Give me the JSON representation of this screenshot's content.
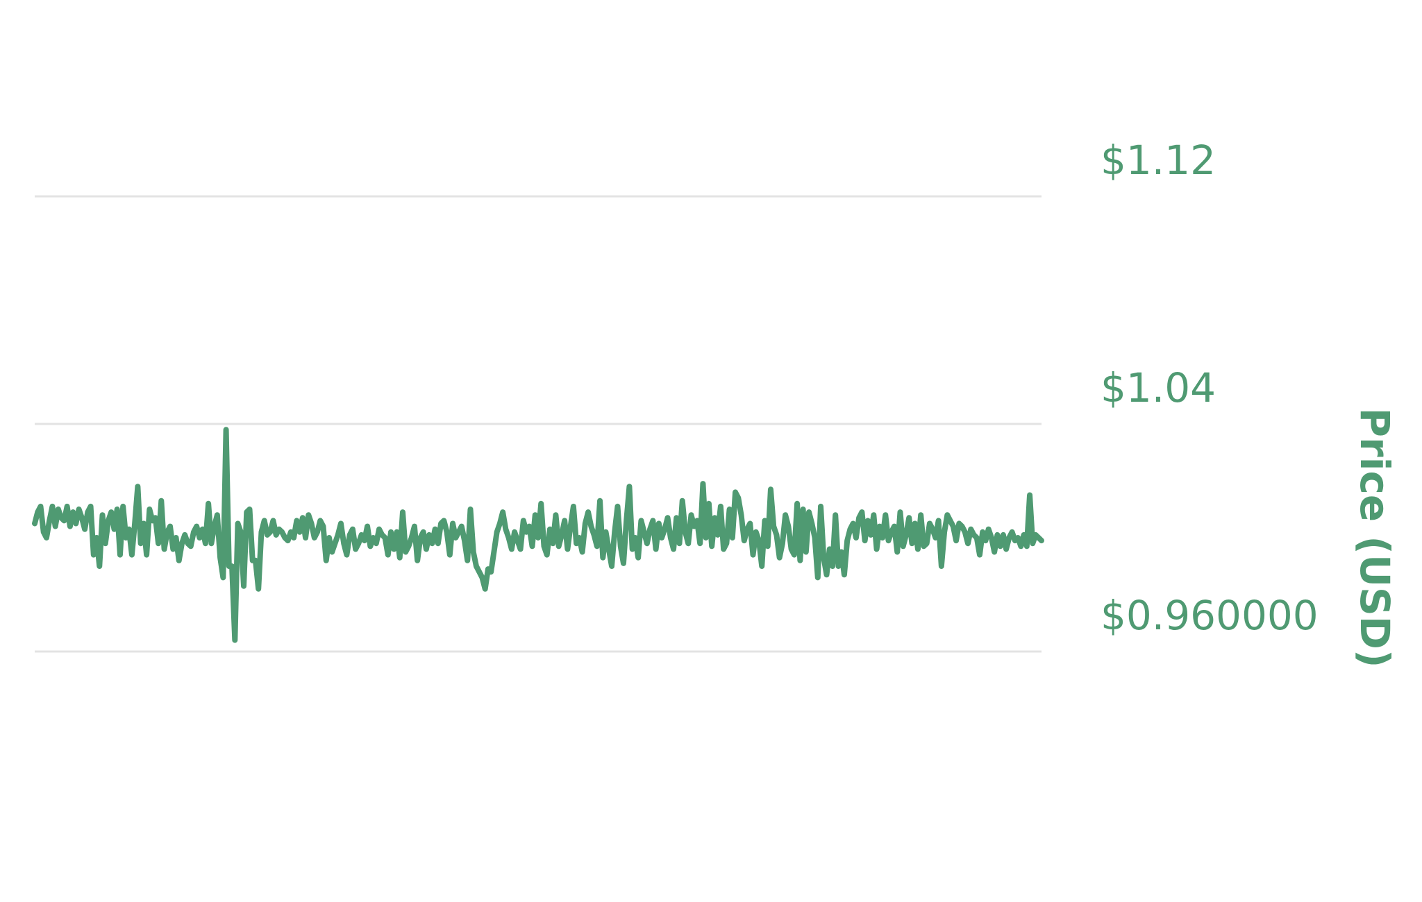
{
  "colors": {
    "line": "#4f9a72",
    "grid": "#e3e3e3",
    "text": "#4f9a72"
  },
  "chart_data": {
    "type": "line",
    "title": "",
    "xlabel": "",
    "ylabel": "Price (USD)",
    "ylim": [
      0.96,
      1.12
    ],
    "y_axis_side": "right",
    "grid": "horizontal",
    "legend": "none",
    "y_ticks": [
      {
        "value": 1.12,
        "label": "$1.12"
      },
      {
        "value": 1.04,
        "label": "$1.04"
      },
      {
        "value": 0.96,
        "label": "$0.960000"
      }
    ],
    "series": [
      {
        "values": [
          1.005,
          1.009,
          1.011,
          1.002,
          1.0,
          1.006,
          1.011,
          1.004,
          1.01,
          1.007,
          1.006,
          1.011,
          1.004,
          1.009,
          1.005,
          1.01,
          1.007,
          1.003,
          1.009,
          1.011,
          0.994,
          1.0,
          0.99,
          1.008,
          0.998,
          1.006,
          1.009,
          1.003,
          1.01,
          0.994,
          1.011,
          1.0,
          1.003,
          0.994,
          1.005,
          1.018,
          0.998,
          1.005,
          0.994,
          1.01,
          1.006,
          1.007,
          0.998,
          1.013,
          0.996,
          1.002,
          1.004,
          0.996,
          1.0,
          0.992,
          0.998,
          1.001,
          0.998,
          0.997,
          1.002,
          1.004,
          1.0,
          1.003,
          0.998,
          1.012,
          0.998,
          1.004,
          1.008,
          0.993,
          0.986,
          1.038,
          0.99,
          0.99,
          0.964,
          1.005,
          1.002,
          0.983,
          1.009,
          1.01,
          0.992,
          0.992,
          0.982,
          1.002,
          1.006,
          1.001,
          1.002,
          1.006,
          1.001,
          1.003,
          1.002,
          1.0,
          0.999,
          1.002,
          1.0,
          1.006,
          1.002,
          1.007,
          1.0,
          1.008,
          1.005,
          1.0,
          1.002,
          1.006,
          1.004,
          0.992,
          1.0,
          0.995,
          0.998,
          1.001,
          1.005,
          0.998,
          0.994,
          1.001,
          1.003,
          0.996,
          0.998,
          1.001,
          0.999,
          1.004,
          0.997,
          1.0,
          0.998,
          1.003,
          1.001,
          1.0,
          0.994,
          1.002,
          0.996,
          1.002,
          0.993,
          1.009,
          0.995,
          0.997,
          1.0,
          1.004,
          0.992,
          1.0,
          1.002,
          0.996,
          1.001,
          0.998,
          1.003,
          0.998,
          1.005,
          1.006,
          1.002,
          0.994,
          1.005,
          1.0,
          1.002,
          1.004,
          0.999,
          0.992,
          1.01,
          0.995,
          0.99,
          0.988,
          0.986,
          0.982,
          0.989,
          0.988,
          0.995,
          1.002,
          1.005,
          1.009,
          1.003,
          1.0,
          0.996,
          1.002,
          0.999,
          0.996,
          1.006,
          1.002,
          1.004,
          0.997,
          1.008,
          1.0,
          1.012,
          0.997,
          0.994,
          1.003,
          0.998,
          1.008,
          0.997,
          1.001,
          1.006,
          0.996,
          1.004,
          1.011,
          0.998,
          1.0,
          0.995,
          1.005,
          1.009,
          1.004,
          1.001,
          0.997,
          1.013,
          0.993,
          1.002,
          0.996,
          0.99,
          1.002,
          1.011,
          0.997,
          0.991,
          1.006,
          1.018,
          0.996,
          1.0,
          0.993,
          1.006,
          1.002,
          0.998,
          1.003,
          1.006,
          0.996,
          1.005,
          1.0,
          1.003,
          1.007,
          1.0,
          0.996,
          1.007,
          0.998,
          1.013,
          1.002,
          0.998,
          1.008,
          1.004,
          1.006,
          0.998,
          1.019,
          1.0,
          1.012,
          0.997,
          1.007,
          1.001,
          1.011,
          0.996,
          0.998,
          1.01,
          1.0,
          1.016,
          1.014,
          1.008,
          0.999,
          1.003,
          1.005,
          0.994,
          1.002,
          0.999,
          0.99,
          1.006,
          0.997,
          1.017,
          1.004,
          1.001,
          0.993,
          0.998,
          1.008,
          1.004,
          0.996,
          0.994,
          1.012,
          0.992,
          1.01,
          0.995,
          1.009,
          1.005,
          1.0,
          0.986,
          1.011,
          0.993,
          0.987,
          0.996,
          0.99,
          1.008,
          0.99,
          0.995,
          0.987,
          0.999,
          1.003,
          1.005,
          1.0,
          1.007,
          1.009,
          0.999,
          1.006,
          1.001,
          1.008,
          0.996,
          1.004,
          1.0,
          1.008,
          0.999,
          1.002,
          1.004,
          0.995,
          1.009,
          0.997,
          1.001,
          1.007,
          0.998,
          1.005,
          0.996,
          1.008,
          0.997,
          0.998,
          1.005,
          1.003,
          1.0,
          1.006,
          0.99,
          1.002,
          1.008,
          1.006,
          1.004,
          0.999,
          1.005,
          1.004,
          1.002,
          0.998,
          1.003,
          1.001,
          1.0,
          0.994,
          1.002,
          0.999,
          1.003,
          1.0,
          0.995,
          1.001,
          0.997,
          1.001,
          0.996,
          1.0,
          1.002,
          0.999,
          1.0,
          0.997,
          1.001,
          0.997,
          1.015,
          0.998,
          1.001,
          1.0,
          0.999
        ]
      }
    ]
  }
}
